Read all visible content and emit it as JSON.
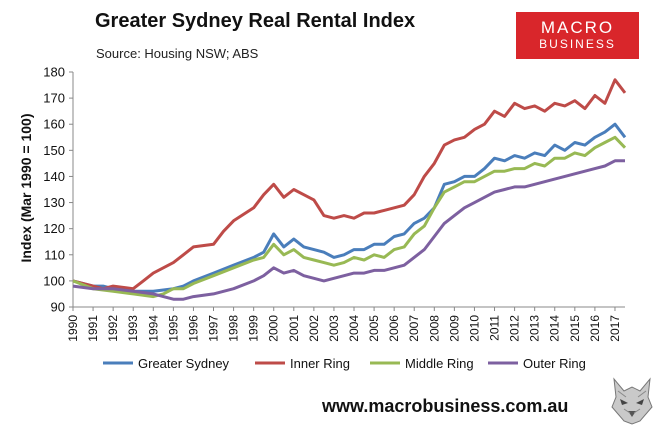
{
  "header": {
    "title": "Greater Sydney Real Rental Index",
    "subtitle": "Source: Housing NSW; ABS"
  },
  "logo": {
    "line1": "MACRO",
    "line2": "BUSINESS"
  },
  "footer": {
    "website": "www.macrobusiness.com.au"
  },
  "colors": {
    "Greater Sydney": "#4a7ebb",
    "Inner Ring": "#be4b48",
    "Middle Ring": "#98b954",
    "Outer Ring": "#7d60a0",
    "logo": "#d9262b"
  },
  "chart_data": {
    "type": "line",
    "title": "Greater Sydney Real Rental Index",
    "subtitle": "Source: Housing NSW; ABS",
    "xlabel": "",
    "ylabel": "Index (Mar 1990 = 100)",
    "ylim": [
      90,
      180
    ],
    "yticks": [
      90,
      100,
      110,
      120,
      130,
      140,
      150,
      160,
      170,
      180
    ],
    "xlim": [
      1990,
      2017.5
    ],
    "xtick_labels": [
      "1990",
      "1991",
      "1992",
      "1993",
      "1994",
      "1995",
      "1996",
      "1997",
      "1998",
      "1999",
      "2000",
      "2001",
      "2002",
      "2003",
      "2004",
      "2005",
      "2006",
      "2007",
      "2008",
      "2009",
      "2010",
      "2011",
      "2012",
      "2013",
      "2014",
      "2015",
      "2016",
      "2017"
    ],
    "grid": false,
    "legend_position": "bottom",
    "series": [
      {
        "name": "Greater Sydney",
        "x": [
          1990,
          1991,
          1991.5,
          1992,
          1993,
          1994,
          1995,
          1995.5,
          1996,
          1997,
          1998,
          1999,
          1999.5,
          2000,
          2000.5,
          2001,
          2001.5,
          2002,
          2002.5,
          2003,
          2003.5,
          2004,
          2004.5,
          2005,
          2005.5,
          2006,
          2006.5,
          2007,
          2007.5,
          2008,
          2008.5,
          2009,
          2009.5,
          2010,
          2010.5,
          2011,
          2011.5,
          2012,
          2012.5,
          2013,
          2013.5,
          2014,
          2014.5,
          2015,
          2015.5,
          2016,
          2016.5,
          2017,
          2017.5
        ],
        "values": [
          100,
          98,
          98,
          97,
          96,
          96,
          97,
          98,
          100,
          103,
          106,
          109,
          111,
          118,
          113,
          116,
          113,
          112,
          111,
          109,
          110,
          112,
          112,
          114,
          114,
          117,
          118,
          122,
          124,
          128,
          137,
          138,
          140,
          140,
          143,
          147,
          146,
          148,
          147,
          149,
          148,
          152,
          150,
          153,
          152,
          155,
          157,
          160,
          155
        ]
      },
      {
        "name": "Inner Ring",
        "x": [
          1990,
          1991,
          1991.5,
          1992,
          1993,
          1993.5,
          1994,
          1995,
          1995.5,
          1996,
          1997,
          1997.5,
          1998,
          1999,
          1999.5,
          2000,
          2000.5,
          2001,
          2001.5,
          2002,
          2002.5,
          2003,
          2003.5,
          2004,
          2004.5,
          2005,
          2005.5,
          2006,
          2006.5,
          2007,
          2007.5,
          2008,
          2008.5,
          2009,
          2009.5,
          2010,
          2010.5,
          2011,
          2011.5,
          2012,
          2012.5,
          2013,
          2013.5,
          2014,
          2014.5,
          2015,
          2015.5,
          2016,
          2016.5,
          2017,
          2017.5
        ],
        "values": [
          100,
          98,
          97,
          98,
          97,
          100,
          103,
          107,
          110,
          113,
          114,
          119,
          123,
          128,
          133,
          137,
          132,
          135,
          133,
          131,
          125,
          124,
          125,
          124,
          126,
          126,
          127,
          128,
          129,
          133,
          140,
          145,
          152,
          154,
          155,
          158,
          160,
          165,
          163,
          168,
          166,
          167,
          165,
          168,
          167,
          169,
          166,
          171,
          168,
          177,
          172
        ]
      },
      {
        "name": "Middle Ring",
        "x": [
          1990,
          1991,
          1992,
          1993,
          1994,
          1994.5,
          1995,
          1995.5,
          1996,
          1997,
          1998,
          1999,
          1999.5,
          2000,
          2000.5,
          2001,
          2001.5,
          2002,
          2002.5,
          2003,
          2003.5,
          2004,
          2004.5,
          2005,
          2005.5,
          2006,
          2006.5,
          2007,
          2007.5,
          2008,
          2008.5,
          2009,
          2009.5,
          2010,
          2010.5,
          2011,
          2011.5,
          2012,
          2012.5,
          2013,
          2013.5,
          2014,
          2014.5,
          2015,
          2015.5,
          2016,
          2016.5,
          2017,
          2017.5
        ],
        "values": [
          100,
          97,
          96,
          95,
          94,
          95,
          97,
          97,
          99,
          102,
          105,
          108,
          109,
          114,
          110,
          112,
          109,
          108,
          107,
          106,
          107,
          109,
          108,
          110,
          109,
          112,
          113,
          118,
          121,
          128,
          134,
          136,
          138,
          138,
          140,
          142,
          142,
          143,
          143,
          145,
          144,
          147,
          147,
          149,
          148,
          151,
          153,
          155,
          151
        ]
      },
      {
        "name": "Outer Ring",
        "x": [
          1990,
          1991,
          1992,
          1993,
          1994,
          1994.5,
          1995,
          1995.5,
          1996,
          1997,
          1998,
          1999,
          1999.5,
          2000,
          2000.5,
          2001,
          2001.5,
          2002,
          2002.5,
          2003,
          2003.5,
          2004,
          2004.5,
          2005,
          2005.5,
          2006,
          2006.5,
          2007,
          2007.5,
          2008,
          2008.5,
          2009,
          2009.5,
          2010,
          2010.5,
          2011,
          2011.5,
          2012,
          2012.5,
          2013,
          2013.5,
          2014,
          2014.5,
          2015,
          2015.5,
          2016,
          2016.5,
          2017,
          2017.5
        ],
        "values": [
          98,
          97,
          97,
          96,
          95,
          94,
          93,
          93,
          94,
          95,
          97,
          100,
          102,
          105,
          103,
          104,
          102,
          101,
          100,
          101,
          102,
          103,
          103,
          104,
          104,
          105,
          106,
          109,
          112,
          117,
          122,
          125,
          128,
          130,
          132,
          134,
          135,
          136,
          136,
          137,
          138,
          139,
          140,
          141,
          142,
          143,
          144,
          146,
          146
        ]
      }
    ]
  }
}
